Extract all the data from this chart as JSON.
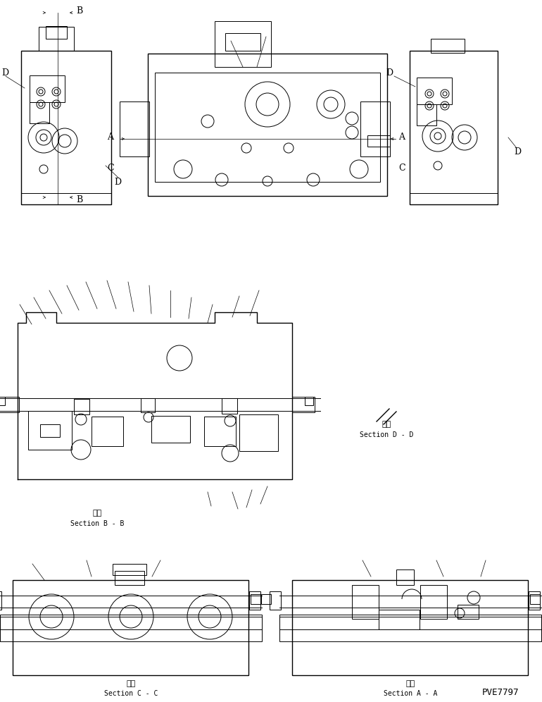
{
  "bg_color": "#ffffff",
  "line_color": "#000000",
  "fig_width": 7.7,
  "fig_height": 9.96,
  "dpi": 100,
  "pve_code": "PVE7797",
  "section_labels": {
    "BB": {
      "ja": "断面",
      "en": "Section B - B"
    },
    "DD": {
      "ja": "断面",
      "en": "Section D - D"
    },
    "CC": {
      "ja": "断面",
      "en": "Section C - C"
    },
    "AA": {
      "ja": "断面",
      "en": "Section A - A"
    }
  }
}
